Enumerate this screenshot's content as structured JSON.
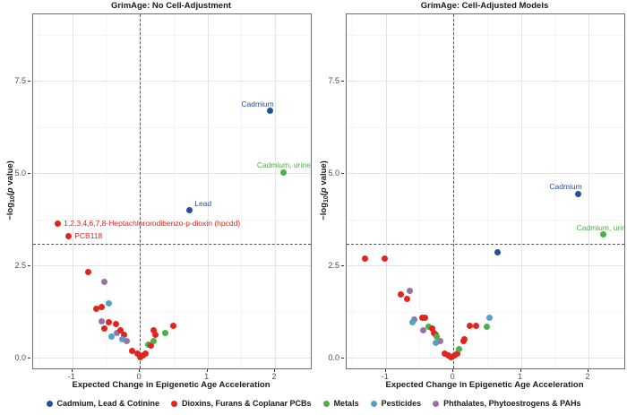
{
  "palette": {
    "blue": "#24519B",
    "red": "#E0251C",
    "green": "#4DAF4A",
    "cyan": "#4EA5C9",
    "purple": "#9572A8"
  },
  "y_axis_label": {
    "neg_log": "−log",
    "sub": "10",
    "open": "(",
    "p": "p",
    "rest": " value)"
  },
  "legend": {
    "position": "bottom",
    "items": [
      {
        "label": "Cadmium, Lead & Cotinine",
        "group": "blue"
      },
      {
        "label": "Dioxins, Furans & Coplanar PCBs",
        "group": "red"
      },
      {
        "label": "Metals",
        "group": "green"
      },
      {
        "label": "Pesticides",
        "group": "cyan"
      },
      {
        "label": "Phthalates, Phytoestrogens & PAHs",
        "group": "purple"
      }
    ]
  },
  "chart_data": [
    {
      "type": "scatter",
      "title": "GrimAge: No Cell-Adjustment",
      "xlabel": "Expected Change in Epigenetic Age Acceleration",
      "ylabel": "-log10(p value)",
      "xlim": [
        -1.58,
        2.53
      ],
      "ylim": [
        -0.29,
        9.3
      ],
      "x_ticks": [
        {
          "v": -1,
          "label": "-1"
        },
        {
          "v": 0,
          "label": "0"
        },
        {
          "v": 1,
          "label": "1"
        },
        {
          "v": 2,
          "label": "2"
        }
      ],
      "y_ticks": [
        {
          "v": 0,
          "label": "0.0"
        },
        {
          "v": 2.5,
          "label": "2.5"
        },
        {
          "v": 5,
          "label": "5.0"
        },
        {
          "v": 7.5,
          "label": "7.5"
        }
      ],
      "grid": {
        "minor_x": [
          -1.5,
          -0.5,
          0.5,
          1.5
        ],
        "minor_y": [
          1.25,
          3.75,
          6.25,
          8.75
        ]
      },
      "threshold": {
        "y": 3.08,
        "x": 0
      },
      "points": [
        {
          "x": 1.93,
          "y": 6.68,
          "g": "blue",
          "label": "Cadmium",
          "lp": "above-left"
        },
        {
          "x": 2.13,
          "y": 5.02,
          "g": "green",
          "label": "Cadmium, urine",
          "lp": "above"
        },
        {
          "x": 0.73,
          "y": 4.0,
          "g": "blue",
          "label": "Lead",
          "lp": "above-right"
        },
        {
          "x": -1.22,
          "y": 3.64,
          "g": "red",
          "label": "1,2,3,4,6,7,8-Heptachlororodibenzo-p-dioxin (hpcdd)",
          "lp": "right"
        },
        {
          "x": -1.06,
          "y": 3.28,
          "g": "red",
          "label": "PCB118",
          "lp": "right"
        },
        {
          "x": -0.77,
          "y": 2.33,
          "g": "red"
        },
        {
          "x": -0.52,
          "y": 2.06,
          "g": "purple"
        },
        {
          "x": -0.65,
          "y": 1.33,
          "g": "red"
        },
        {
          "x": -0.56,
          "y": 1.38,
          "g": "red"
        },
        {
          "x": -0.46,
          "y": 1.46,
          "g": "cyan"
        },
        {
          "x": -0.56,
          "y": 0.99,
          "g": "purple"
        },
        {
          "x": -0.46,
          "y": 0.97,
          "g": "red"
        },
        {
          "x": -0.52,
          "y": 0.78,
          "g": "red"
        },
        {
          "x": -0.36,
          "y": 0.9,
          "g": "red"
        },
        {
          "x": -0.42,
          "y": 0.58,
          "g": "cyan"
        },
        {
          "x": -0.34,
          "y": 0.68,
          "g": "purple"
        },
        {
          "x": -0.29,
          "y": 0.73,
          "g": "red"
        },
        {
          "x": -0.23,
          "y": 0.61,
          "g": "red"
        },
        {
          "x": -0.26,
          "y": 0.49,
          "g": "cyan"
        },
        {
          "x": -0.19,
          "y": 0.46,
          "g": "purple"
        },
        {
          "x": -0.11,
          "y": 0.19,
          "g": "red"
        },
        {
          "x": -0.04,
          "y": 0.1,
          "g": "red"
        },
        {
          "x": 0.0,
          "y": 0.02,
          "g": "red"
        },
        {
          "x": 0.04,
          "y": 0.05,
          "g": "red"
        },
        {
          "x": 0.08,
          "y": 0.12,
          "g": "red"
        },
        {
          "x": 0.13,
          "y": 0.36,
          "g": "green"
        },
        {
          "x": 0.16,
          "y": 0.32,
          "g": "red"
        },
        {
          "x": 0.2,
          "y": 0.44,
          "g": "green"
        },
        {
          "x": 0.23,
          "y": 0.61,
          "g": "red"
        },
        {
          "x": 0.2,
          "y": 0.75,
          "g": "red"
        },
        {
          "x": 0.37,
          "y": 0.68,
          "g": "green"
        },
        {
          "x": 0.49,
          "y": 0.87,
          "g": "red"
        }
      ]
    },
    {
      "type": "scatter",
      "title": "GrimAge: Cell-Adjusted Models",
      "xlabel": "Expected Change in Epigenetic Age Acceleration",
      "ylabel": "-log10(p value)",
      "xlim": [
        -1.58,
        2.53
      ],
      "ylim": [
        -0.29,
        9.3
      ],
      "x_ticks": [
        {
          "v": -1,
          "label": "-1"
        },
        {
          "v": 0,
          "label": "0"
        },
        {
          "v": 1,
          "label": "1"
        },
        {
          "v": 2,
          "label": "2"
        }
      ],
      "y_ticks": [
        {
          "v": 0,
          "label": "0.0"
        },
        {
          "v": 2.5,
          "label": "2.5"
        },
        {
          "v": 5,
          "label": "5.0"
        },
        {
          "v": 7.5,
          "label": "7.5"
        }
      ],
      "grid": {
        "minor_x": [
          -1.5,
          -0.5,
          0.5,
          1.5
        ],
        "minor_y": [
          1.25,
          3.75,
          6.25,
          8.75
        ]
      },
      "threshold": {
        "y": 3.08,
        "x": 0
      },
      "points": [
        {
          "x": 1.85,
          "y": 4.44,
          "g": "blue",
          "label": "Cadmium",
          "lp": "above-left"
        },
        {
          "x": 2.22,
          "y": 3.33,
          "g": "green",
          "label": "Cadmium, urine",
          "lp": "above"
        },
        {
          "x": 0.66,
          "y": 2.86,
          "g": "blue"
        },
        {
          "x": -1.31,
          "y": 2.69,
          "g": "red"
        },
        {
          "x": -1.02,
          "y": 2.69,
          "g": "red"
        },
        {
          "x": -0.78,
          "y": 1.72,
          "g": "red"
        },
        {
          "x": -0.65,
          "y": 1.82,
          "g": "purple"
        },
        {
          "x": -0.69,
          "y": 1.6,
          "g": "red"
        },
        {
          "x": -0.58,
          "y": 1.04,
          "g": "purple"
        },
        {
          "x": -0.6,
          "y": 0.95,
          "g": "cyan"
        },
        {
          "x": -0.46,
          "y": 1.09,
          "g": "red"
        },
        {
          "x": -0.42,
          "y": 1.09,
          "g": "red"
        },
        {
          "x": -0.45,
          "y": 0.73,
          "g": "purple"
        },
        {
          "x": -0.37,
          "y": 0.85,
          "g": "green"
        },
        {
          "x": -0.32,
          "y": 0.8,
          "g": "red"
        },
        {
          "x": -0.29,
          "y": 0.68,
          "g": "red"
        },
        {
          "x": -0.26,
          "y": 0.61,
          "g": "red"
        },
        {
          "x": -0.25,
          "y": 0.56,
          "g": "green"
        },
        {
          "x": -0.26,
          "y": 0.39,
          "g": "cyan"
        },
        {
          "x": -0.2,
          "y": 0.44,
          "g": "purple"
        },
        {
          "x": -0.13,
          "y": 0.12,
          "g": "red"
        },
        {
          "x": -0.08,
          "y": 0.07,
          "g": "red"
        },
        {
          "x": -0.03,
          "y": 0.02,
          "g": "red"
        },
        {
          "x": 0.02,
          "y": 0.05,
          "g": "red"
        },
        {
          "x": 0.06,
          "y": 0.1,
          "g": "red"
        },
        {
          "x": 0.08,
          "y": 0.24,
          "g": "green"
        },
        {
          "x": 0.15,
          "y": 0.44,
          "g": "red"
        },
        {
          "x": 0.17,
          "y": 0.49,
          "g": "red"
        },
        {
          "x": 0.24,
          "y": 0.87,
          "g": "red"
        },
        {
          "x": 0.34,
          "y": 0.87,
          "g": "red"
        },
        {
          "x": 0.5,
          "y": 0.85,
          "g": "green"
        },
        {
          "x": 0.54,
          "y": 1.09,
          "g": "cyan"
        }
      ]
    }
  ]
}
